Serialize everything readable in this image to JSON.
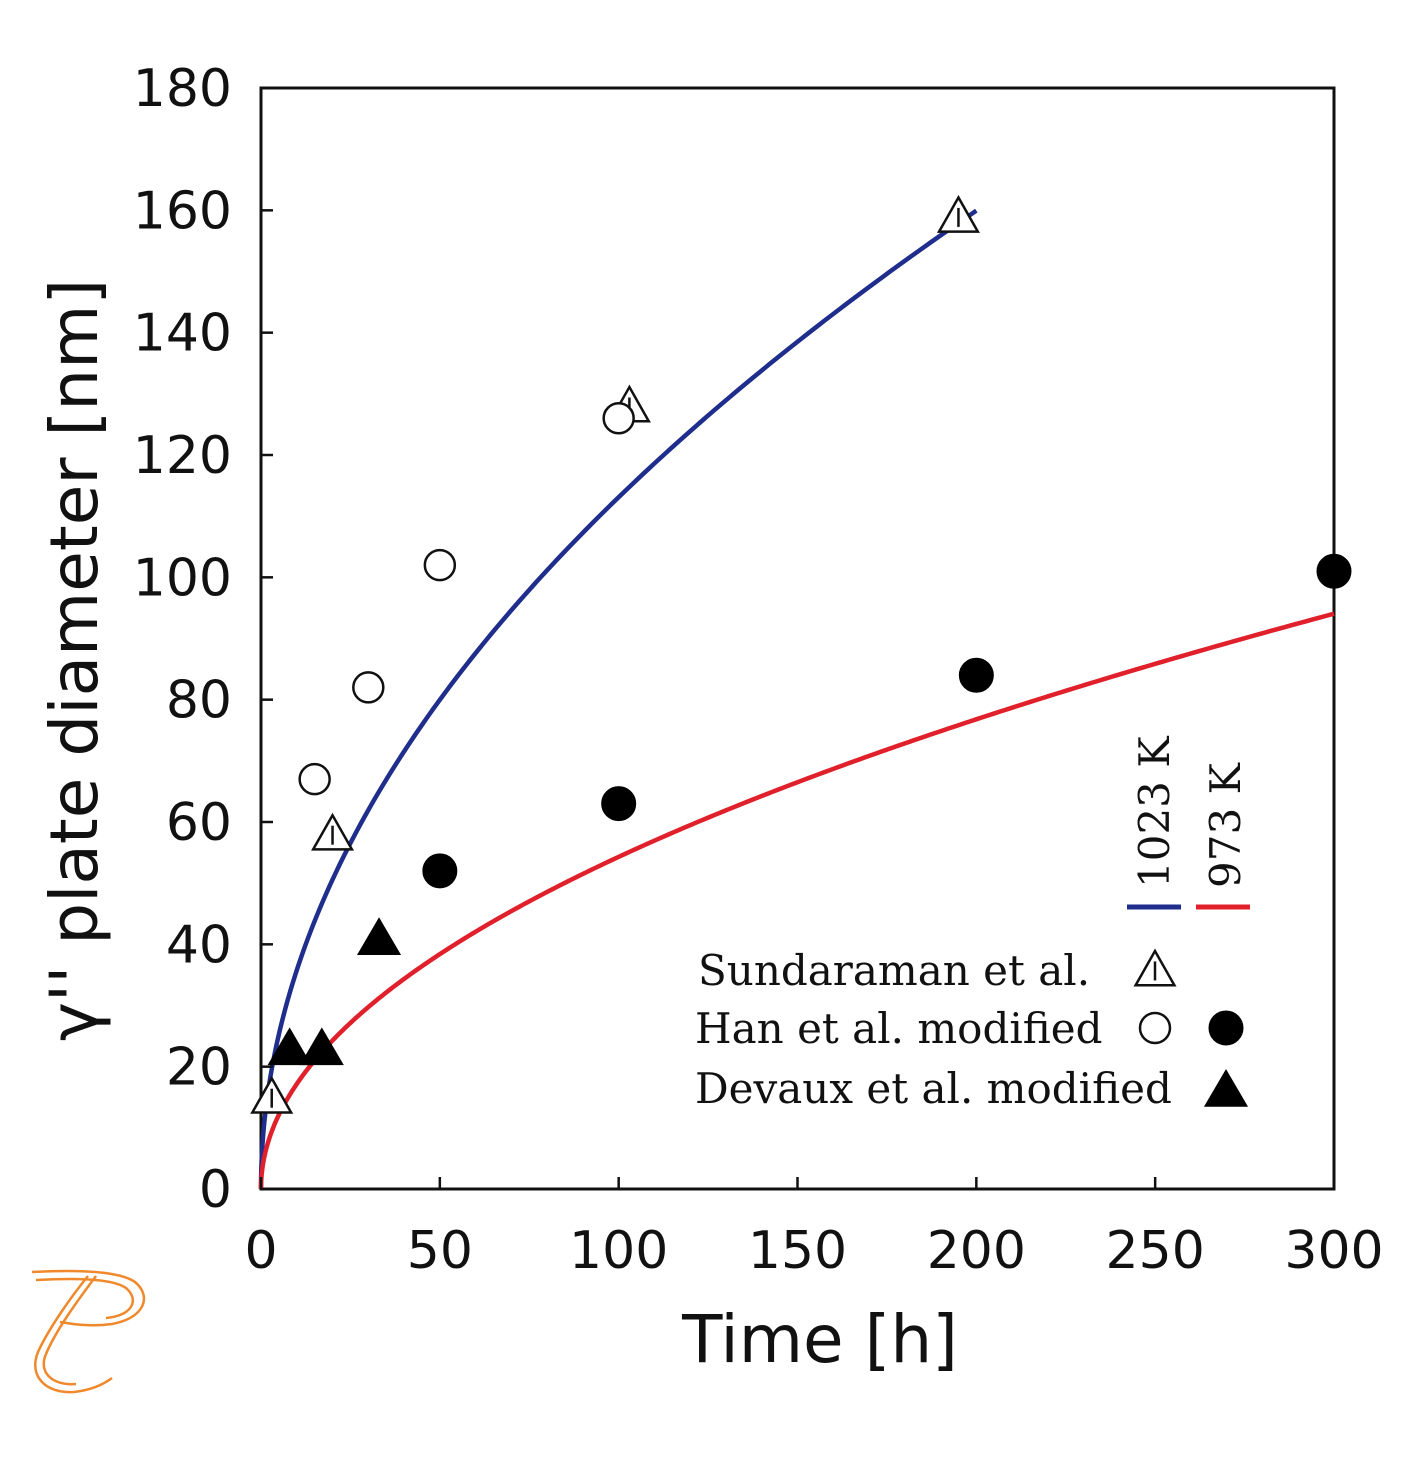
{
  "chart_data": {
    "type": "scatter",
    "xlabel": "Time [h]",
    "ylabel": "γ'' plate diameter [nm]",
    "xlim": [
      0,
      300
    ],
    "ylim": [
      0,
      180
    ],
    "x_ticks": [
      0,
      50,
      100,
      150,
      200,
      250,
      300
    ],
    "y_ticks": [
      0,
      20,
      40,
      60,
      80,
      100,
      120,
      140,
      160,
      180
    ],
    "x_tick_labels": [
      "0",
      "50",
      "100",
      "150",
      "200",
      "250",
      "300"
    ],
    "y_tick_labels": [
      "0",
      "20",
      "40",
      "60",
      "80",
      "100",
      "120",
      "140",
      "160",
      "180"
    ],
    "grid": false,
    "curves": [
      {
        "name": "1023 K",
        "color": "#1f2d8c",
        "k": 11.31,
        "x_start": 0,
        "x_end": 200
      },
      {
        "name": "973 K",
        "color": "#e0202a",
        "k": 5.43,
        "x_start": 0,
        "x_end": 300
      }
    ],
    "series": [
      {
        "name": "Sundaraman et al.",
        "temperature": "1023 K",
        "marker": "open-triangle",
        "x": [
          3,
          20,
          103,
          195
        ],
        "y": [
          15,
          58,
          128,
          159
        ]
      },
      {
        "name": "Han et al. modified",
        "temperature": "1023 K",
        "marker": "open-circle",
        "x": [
          15,
          30,
          50,
          100
        ],
        "y": [
          67,
          82,
          102,
          126
        ]
      },
      {
        "name": "Han et al. modified",
        "temperature": "973 K",
        "marker": "filled-circle",
        "x": [
          50,
          100,
          200,
          300
        ],
        "y": [
          52,
          63,
          84,
          101
        ]
      },
      {
        "name": "Devaux et al. modified",
        "temperature": "973 K",
        "marker": "filled-triangle",
        "x": [
          8,
          17,
          33
        ],
        "y": [
          23,
          23,
          41
        ]
      }
    ],
    "legend": {
      "placement": "bottom-right",
      "curve_labels": [
        "1023 K",
        "973 K"
      ],
      "entries": [
        {
          "label": "Sundaraman et al.",
          "markers": [
            "open-triangle"
          ]
        },
        {
          "label": "Han et al. modified",
          "markers": [
            "open-circle",
            "filled-circle"
          ]
        },
        {
          "label": "Devaux et al. modified",
          "markers": [
            "filled-triangle"
          ]
        }
      ]
    }
  },
  "logo": {
    "name": "logo-icon",
    "color": "#f0882c"
  }
}
